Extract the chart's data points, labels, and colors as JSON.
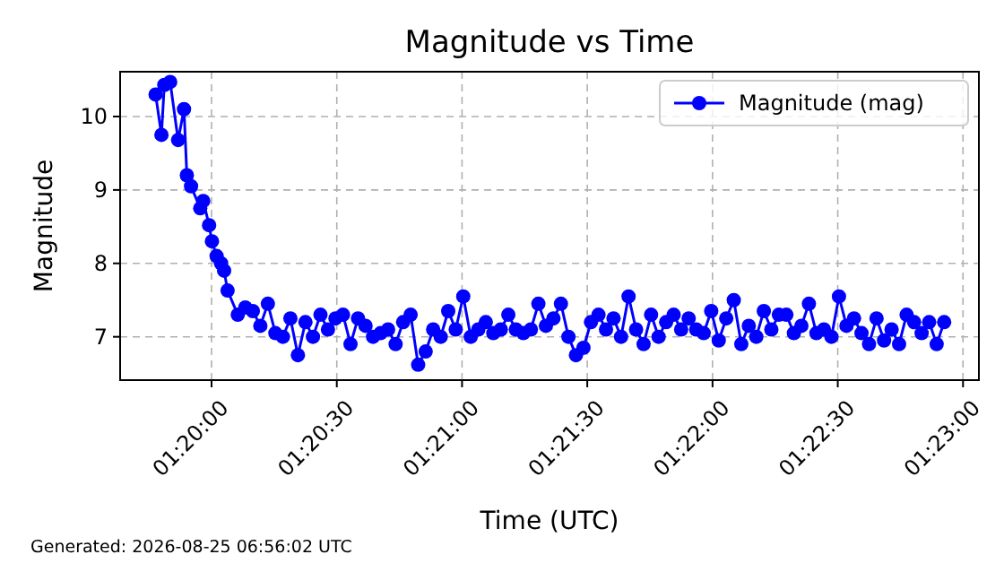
{
  "chart_data": {
    "type": "line",
    "title": "Magnitude vs Time",
    "xlabel": "Time (UTC)",
    "ylabel": "Magnitude",
    "annotations": [
      "Generated: 2026-08-25 06:56:02 UTC"
    ],
    "xlim": [
      1.32725,
      1.38439
    ],
    "ylim": [
      6.41,
      10.61
    ],
    "xticks": [
      {
        "value": 1.333333,
        "label": "01:20:00"
      },
      {
        "value": 1.341667,
        "label": "01:20:30"
      },
      {
        "value": 1.35,
        "label": "01:21:00"
      },
      {
        "value": 1.358333,
        "label": "01:21:30"
      },
      {
        "value": 1.366667,
        "label": "01:22:00"
      },
      {
        "value": 1.375,
        "label": "01:22:30"
      },
      {
        "value": 1.383333,
        "label": "01:23:00"
      }
    ],
    "yticks": [
      7,
      8,
      9,
      10
    ],
    "grid": true,
    "legend": "top right",
    "marker": "circle",
    "line_style": "solid",
    "series": [
      {
        "name": "Magnitude (mag)",
        "color": "#0000ff",
        "x": [
          1.32961,
          1.33,
          1.33019,
          1.33058,
          1.33111,
          1.3315,
          1.33169,
          1.33197,
          1.33258,
          1.33278,
          1.33317,
          1.33336,
          1.33367,
          1.33397,
          1.33417,
          1.3344,
          1.33508,
          1.33558,
          1.33608,
          1.33658,
          1.33708,
          1.33758,
          1.33808,
          1.33858,
          1.33908,
          1.33958,
          1.34008,
          1.34058,
          1.34108,
          1.34158,
          1.34208,
          1.34258,
          1.34308,
          1.34358,
          1.34408,
          1.34458,
          1.34508,
          1.34558,
          1.34608,
          1.34658,
          1.34708,
          1.34758,
          1.34808,
          1.34858,
          1.34908,
          1.34958,
          1.35008,
          1.35058,
          1.35108,
          1.35158,
          1.35208,
          1.35258,
          1.35308,
          1.35358,
          1.35408,
          1.35458,
          1.35508,
          1.35558,
          1.35608,
          1.35658,
          1.35708,
          1.35758,
          1.35808,
          1.35858,
          1.35908,
          1.35958,
          1.36008,
          1.36058,
          1.36108,
          1.36158,
          1.36208,
          1.36258,
          1.36308,
          1.36358,
          1.36408,
          1.36458,
          1.36508,
          1.36558,
          1.36608,
          1.36658,
          1.36708,
          1.36758,
          1.36808,
          1.36858,
          1.36908,
          1.36958,
          1.37008,
          1.37058,
          1.37108,
          1.37158,
          1.37208,
          1.37258,
          1.37308,
          1.37358,
          1.37408,
          1.37458,
          1.37508,
          1.37558,
          1.37608,
          1.37658,
          1.37708,
          1.37758,
          1.37808,
          1.37858,
          1.37908,
          1.37958,
          1.38008,
          1.38058,
          1.38108,
          1.38158,
          1.38208
        ],
        "values": [
          10.3,
          9.75,
          10.43,
          10.47,
          9.68,
          10.1,
          9.2,
          9.05,
          8.75,
          8.85,
          8.52,
          8.3,
          8.1,
          8.0,
          7.9,
          7.63,
          7.3,
          7.4,
          7.35,
          7.15,
          7.45,
          7.05,
          7.0,
          7.25,
          6.75,
          7.2,
          7.0,
          7.3,
          7.1,
          7.25,
          7.3,
          6.9,
          7.25,
          7.15,
          7.0,
          7.05,
          7.1,
          6.9,
          7.2,
          7.3,
          6.62,
          6.8,
          7.1,
          7.0,
          7.35,
          7.1,
          7.55,
          7.0,
          7.1,
          7.2,
          7.05,
          7.1,
          7.3,
          7.1,
          7.05,
          7.1,
          7.45,
          7.15,
          7.25,
          7.45,
          7.0,
          6.75,
          6.85,
          7.2,
          7.3,
          7.1,
          7.25,
          7.0,
          7.55,
          7.1,
          6.9,
          7.3,
          7.0,
          7.2,
          7.3,
          7.1,
          7.25,
          7.1,
          7.05,
          7.35,
          6.95,
          7.25,
          7.5,
          6.9,
          7.15,
          7.0,
          7.35,
          7.1,
          7.3,
          7.3,
          7.05,
          7.15,
          7.45,
          7.05,
          7.1,
          7.0,
          7.55,
          7.15,
          7.25,
          7.05,
          6.9,
          7.25,
          6.95,
          7.1,
          6.9,
          7.3,
          7.2,
          7.05,
          7.2,
          6.9,
          7.2
        ]
      }
    ]
  }
}
